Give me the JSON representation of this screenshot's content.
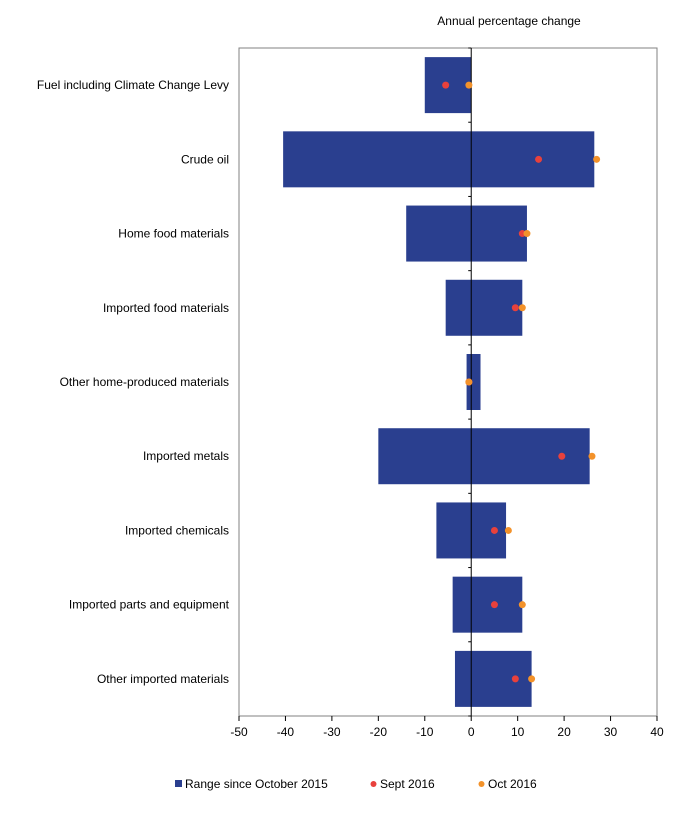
{
  "chart_data": {
    "type": "bar",
    "orientation": "horizontal",
    "title": "",
    "xlabel": "Annual percentage change",
    "ylabel": "",
    "xlim": [
      -50,
      40
    ],
    "xticks": [
      -50,
      -40,
      -30,
      -20,
      -10,
      0,
      10,
      20,
      30,
      40
    ],
    "grid": false,
    "legend_position": "bottom",
    "categories": [
      "Fuel including Climate Change Levy",
      "Crude oil",
      "Home food materials",
      "Imported food materials",
      "Other home-produced materials",
      "Imported metals",
      "Imported chemicals",
      "Imported parts and equipment",
      "Other imported materials"
    ],
    "series": [
      {
        "name": "Range since October 2015",
        "kind": "range-bar",
        "color": "#2a3f8f",
        "low": [
          -10,
          -40.5,
          -14,
          -5.5,
          -1,
          -20,
          -7.5,
          -4,
          -3.5
        ],
        "high": [
          0,
          26.5,
          12,
          11,
          2,
          25.5,
          7.5,
          11,
          13
        ]
      },
      {
        "name": "Sept 2016",
        "kind": "point",
        "color": "#e8413c",
        "values": [
          -5.5,
          14.5,
          11,
          9.5,
          -0.5,
          19.5,
          5,
          5,
          9.5
        ]
      },
      {
        "name": "Oct 2016",
        "kind": "point",
        "color": "#f3922a",
        "values": [
          -0.5,
          27,
          12,
          11,
          -0.5,
          26,
          8,
          11,
          13
        ]
      }
    ]
  }
}
